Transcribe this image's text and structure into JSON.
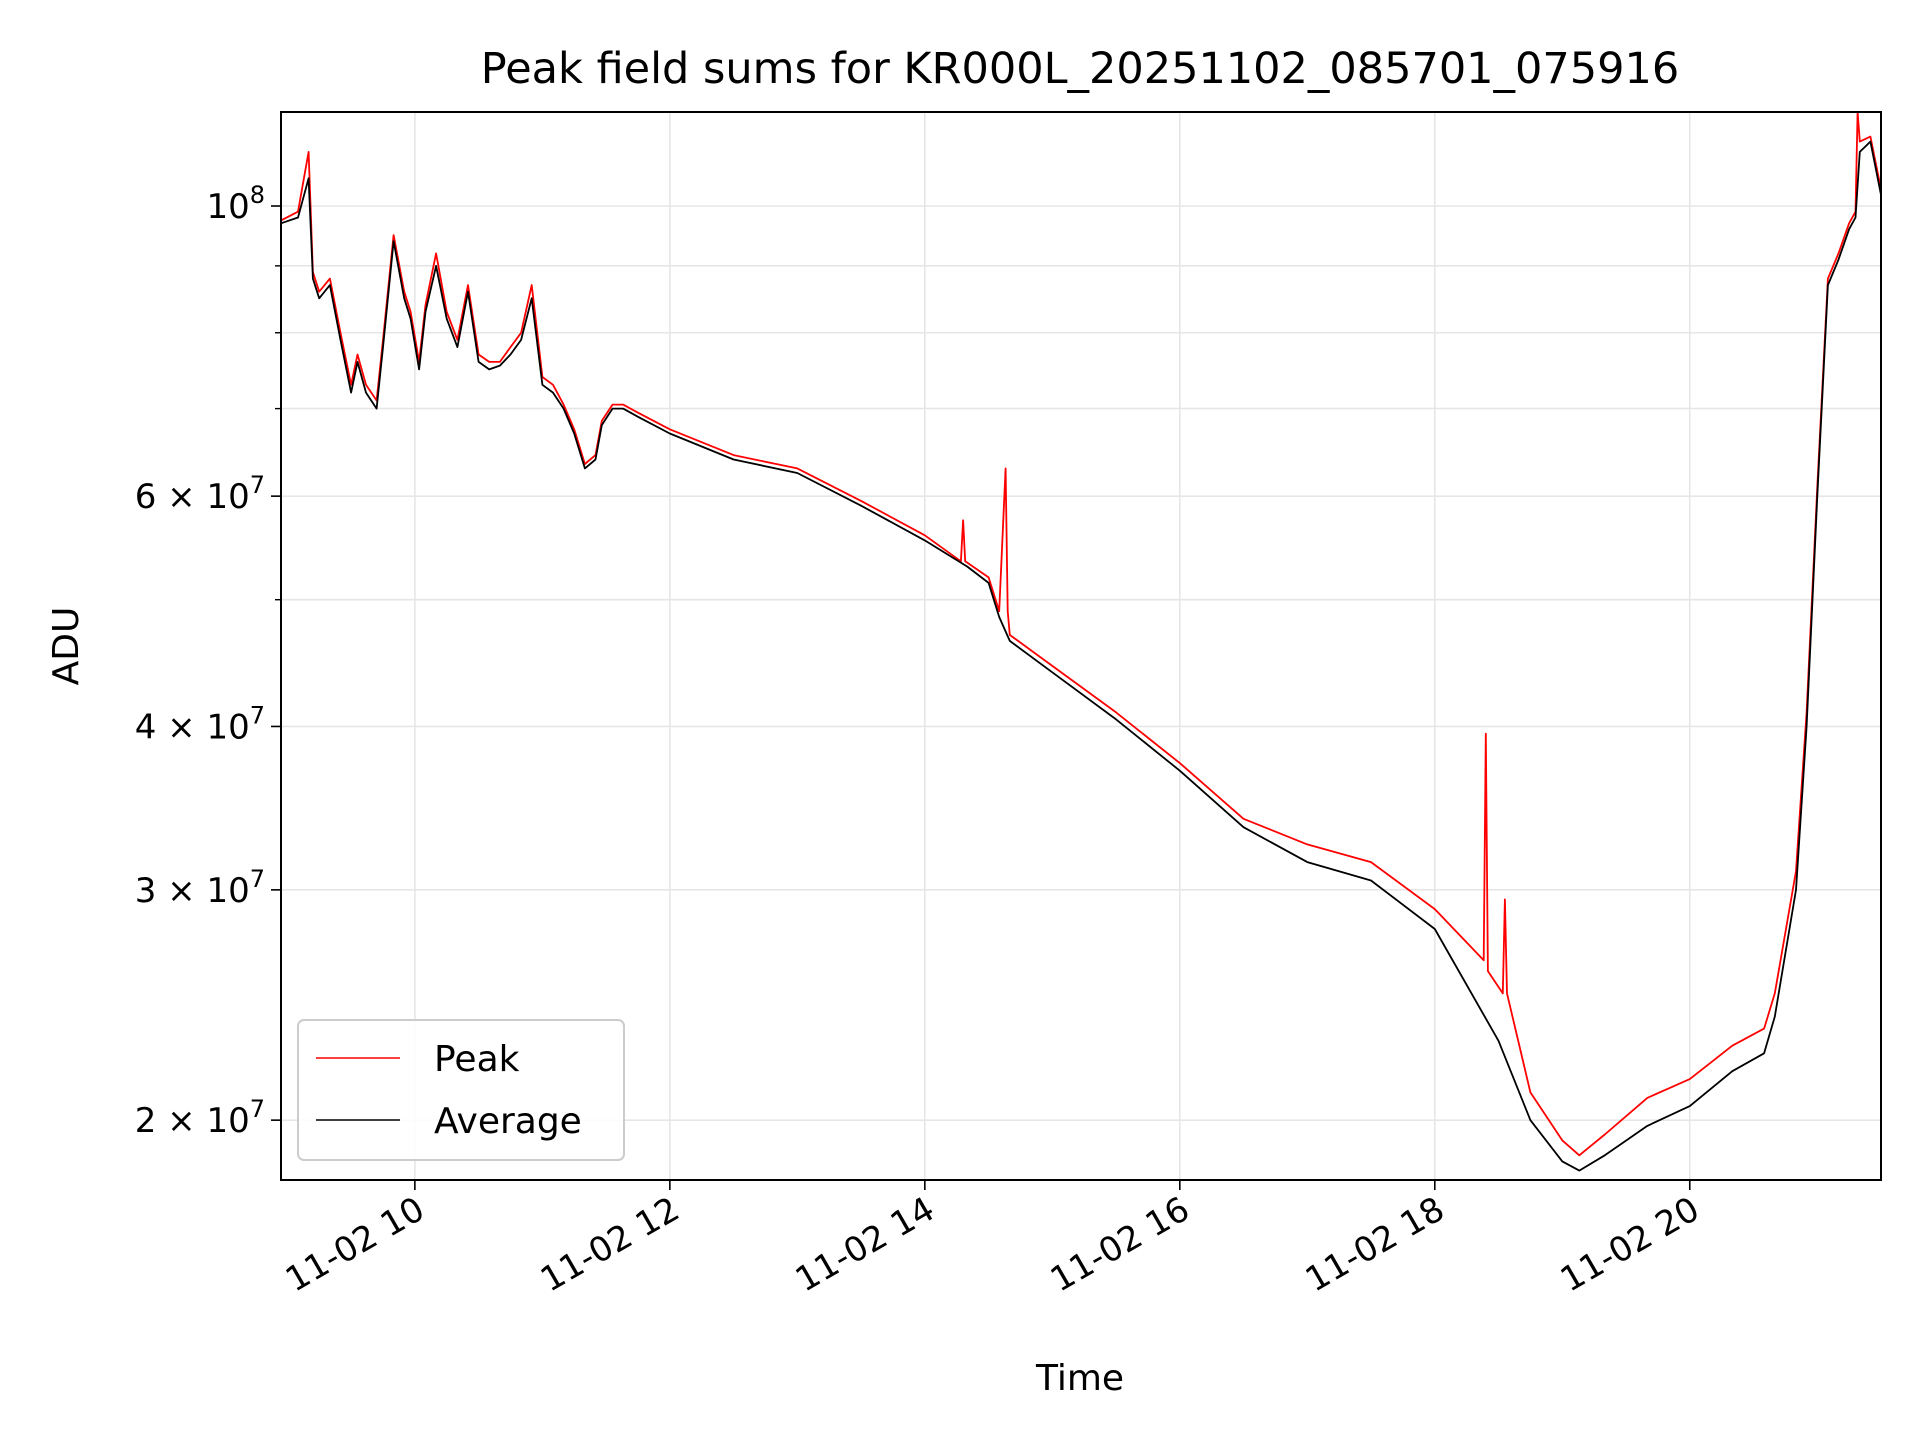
{
  "chart_data": {
    "type": "line",
    "title": "Peak field sums for KR000L_20251102_085701_075916",
    "xlabel": "Time",
    "ylabel": "ADU",
    "yscale": "log",
    "grid": true,
    "legend_position": "lower-left",
    "xlim": [
      "2025-11-02T08:57",
      "2025-11-02T21:30"
    ],
    "ylim": [
      18000000,
      118000000
    ],
    "x_ticks": [
      {
        "time": "2025-11-02T10:00",
        "label": "11-02 10"
      },
      {
        "time": "2025-11-02T12:00",
        "label": "11-02 12"
      },
      {
        "time": "2025-11-02T14:00",
        "label": "11-02 14"
      },
      {
        "time": "2025-11-02T16:00",
        "label": "11-02 16"
      },
      {
        "time": "2025-11-02T18:00",
        "label": "11-02 18"
      },
      {
        "time": "2025-11-02T20:00",
        "label": "11-02 20"
      }
    ],
    "y_ticks": [
      {
        "value": 20000000,
        "mant": "2",
        "exp": "7"
      },
      {
        "value": 30000000,
        "mant": "3",
        "exp": "7"
      },
      {
        "value": 40000000,
        "mant": "4",
        "exp": "7"
      },
      {
        "value": 60000000,
        "mant": "6",
        "exp": "7"
      },
      {
        "value": 100000000,
        "mant": "",
        "exp": "8"
      }
    ],
    "y_minor_ticks": [
      50000000,
      70000000,
      80000000,
      90000000
    ],
    "series": [
      {
        "name": "Average",
        "color": "#000000",
        "x": [
          "2025-11-02T08:57",
          "2025-11-02T09:05",
          "2025-11-02T09:10",
          "2025-11-02T09:12",
          "2025-11-02T09:15",
          "2025-11-02T09:20",
          "2025-11-02T09:25",
          "2025-11-02T09:30",
          "2025-11-02T09:33",
          "2025-11-02T09:37",
          "2025-11-02T09:42",
          "2025-11-02T09:45",
          "2025-11-02T09:50",
          "2025-11-02T09:55",
          "2025-11-02T09:58",
          "2025-11-02T10:02",
          "2025-11-02T10:05",
          "2025-11-02T10:10",
          "2025-11-02T10:15",
          "2025-11-02T10:20",
          "2025-11-02T10:25",
          "2025-11-02T10:30",
          "2025-11-02T10:35",
          "2025-11-02T10:40",
          "2025-11-02T10:45",
          "2025-11-02T10:50",
          "2025-11-02T10:55",
          "2025-11-02T11:00",
          "2025-11-02T11:05",
          "2025-11-02T11:10",
          "2025-11-02T11:15",
          "2025-11-02T11:20",
          "2025-11-02T11:25",
          "2025-11-02T11:28",
          "2025-11-02T11:33",
          "2025-11-02T11:38",
          "2025-11-02T11:45",
          "2025-11-02T12:00",
          "2025-11-02T12:30",
          "2025-11-02T13:00",
          "2025-11-02T13:30",
          "2025-11-02T14:00",
          "2025-11-02T14:20",
          "2025-11-02T14:30",
          "2025-11-02T14:35",
          "2025-11-02T14:40",
          "2025-11-02T15:00",
          "2025-11-02T15:30",
          "2025-11-02T16:00",
          "2025-11-02T16:30",
          "2025-11-02T17:00",
          "2025-11-02T17:30",
          "2025-11-02T18:00",
          "2025-11-02T18:30",
          "2025-11-02T18:45",
          "2025-11-02T19:00",
          "2025-11-02T19:08",
          "2025-11-02T19:20",
          "2025-11-02T19:40",
          "2025-11-02T20:00",
          "2025-11-02T20:20",
          "2025-11-02T20:35",
          "2025-11-02T20:40",
          "2025-11-02T20:50",
          "2025-11-02T20:55",
          "2025-11-02T21:00",
          "2025-11-02T21:05",
          "2025-11-02T21:10",
          "2025-11-02T21:15",
          "2025-11-02T21:18",
          "2025-11-02T21:20",
          "2025-11-02T21:25",
          "2025-11-02T21:30"
        ],
        "y": [
          97000000,
          98000000,
          105000000,
          88000000,
          85000000,
          87000000,
          79000000,
          72000000,
          76000000,
          72000000,
          70000000,
          78000000,
          94000000,
          85000000,
          82000000,
          75000000,
          83000000,
          90000000,
          82000000,
          78000000,
          86000000,
          76000000,
          75000000,
          75500000,
          77000000,
          79000000,
          85000000,
          73000000,
          72000000,
          70000000,
          67000000,
          63000000,
          64000000,
          68000000,
          70000000,
          70000000,
          69000000,
          67000000,
          64000000,
          62500000,
          59000000,
          55500000,
          53000000,
          51500000,
          48500000,
          46500000,
          44000000,
          40500000,
          37000000,
          33500000,
          31500000,
          30500000,
          28000000,
          23000000,
          20000000,
          18600000,
          18300000,
          18800000,
          19800000,
          20500000,
          21800000,
          22500000,
          24000000,
          30000000,
          40000000,
          60000000,
          87000000,
          91000000,
          96000000,
          98000000,
          110000000,
          112000000,
          102000000
        ]
      },
      {
        "name": "Peak",
        "color": "#ff0000",
        "x": [
          "2025-11-02T08:57",
          "2025-11-02T09:05",
          "2025-11-02T09:10",
          "2025-11-02T09:12",
          "2025-11-02T09:15",
          "2025-11-02T09:20",
          "2025-11-02T09:25",
          "2025-11-02T09:30",
          "2025-11-02T09:33",
          "2025-11-02T09:37",
          "2025-11-02T09:42",
          "2025-11-02T09:45",
          "2025-11-02T09:50",
          "2025-11-02T09:55",
          "2025-11-02T09:58",
          "2025-11-02T10:02",
          "2025-11-02T10:05",
          "2025-11-02T10:10",
          "2025-11-02T10:15",
          "2025-11-02T10:20",
          "2025-11-02T10:25",
          "2025-11-02T10:30",
          "2025-11-02T10:35",
          "2025-11-02T10:40",
          "2025-11-02T10:45",
          "2025-11-02T10:50",
          "2025-11-02T10:55",
          "2025-11-02T11:00",
          "2025-11-02T11:05",
          "2025-11-02T11:10",
          "2025-11-02T11:15",
          "2025-11-02T11:20",
          "2025-11-02T11:25",
          "2025-11-02T11:28",
          "2025-11-02T11:33",
          "2025-11-02T11:38",
          "2025-11-02T11:45",
          "2025-11-02T12:00",
          "2025-11-02T12:30",
          "2025-11-02T13:00",
          "2025-11-02T13:30",
          "2025-11-02T14:00",
          "2025-11-02T14:17",
          "2025-11-02T14:18",
          "2025-11-02T14:19",
          "2025-11-02T14:30",
          "2025-11-02T14:35",
          "2025-11-02T14:38",
          "2025-11-02T14:39",
          "2025-11-02T14:40",
          "2025-11-02T15:00",
          "2025-11-02T15:30",
          "2025-11-02T16:00",
          "2025-11-02T16:30",
          "2025-11-02T17:00",
          "2025-11-02T17:30",
          "2025-11-02T18:00",
          "2025-11-02T18:23",
          "2025-11-02T18:24",
          "2025-11-02T18:25",
          "2025-11-02T18:32",
          "2025-11-02T18:33",
          "2025-11-02T18:34",
          "2025-11-02T18:45",
          "2025-11-02T19:00",
          "2025-11-02T19:08",
          "2025-11-02T19:20",
          "2025-11-02T19:40",
          "2025-11-02T20:00",
          "2025-11-02T20:20",
          "2025-11-02T20:35",
          "2025-11-02T20:40",
          "2025-11-02T20:50",
          "2025-11-02T20:55",
          "2025-11-02T21:00",
          "2025-11-02T21:05",
          "2025-11-02T21:10",
          "2025-11-02T21:15",
          "2025-11-02T21:18",
          "2025-11-02T21:19",
          "2025-11-02T21:20",
          "2025-11-02T21:25",
          "2025-11-02T21:30"
        ],
        "y": [
          97500000,
          99000000,
          110000000,
          89000000,
          86000000,
          88000000,
          80000000,
          73000000,
          77000000,
          73000000,
          71000000,
          79000000,
          95000000,
          86000000,
          83000000,
          76000000,
          84000000,
          92000000,
          83000000,
          79000000,
          87000000,
          77000000,
          76000000,
          76000000,
          78000000,
          80000000,
          87000000,
          74000000,
          73000000,
          70500000,
          67500000,
          63500000,
          64500000,
          68500000,
          70500000,
          70500000,
          69500000,
          67500000,
          64500000,
          63000000,
          59500000,
          56000000,
          53500000,
          57500000,
          53500000,
          52000000,
          49000000,
          63000000,
          49000000,
          47000000,
          44500000,
          41000000,
          37500000,
          34000000,
          32500000,
          31500000,
          29000000,
          26500000,
          39500000,
          26000000,
          25000000,
          29500000,
          25000000,
          21000000,
          19300000,
          18800000,
          19500000,
          20800000,
          21500000,
          22800000,
          23500000,
          25000000,
          31000000,
          41000000,
          61000000,
          88000000,
          92000000,
          97000000,
          99000000,
          118000000,
          112000000,
          113000000,
          103000000
        ]
      }
    ]
  }
}
